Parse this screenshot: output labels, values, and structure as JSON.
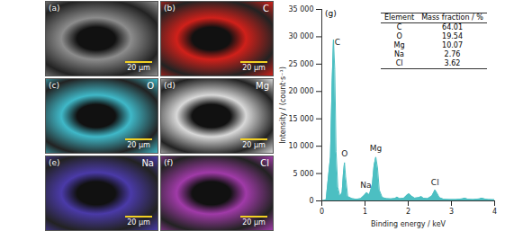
{
  "panels": [
    {
      "label": "(a)",
      "color": "#8c8c8c",
      "scale_bar": "20 μm"
    },
    {
      "label": "(b)",
      "element": "C",
      "color": "#d0201a",
      "scale_bar": "20 μm"
    },
    {
      "label": "(c)",
      "element": "O",
      "color": "#3fb8c8",
      "scale_bar": "20 μm"
    },
    {
      "label": "(d)",
      "element": "Mg",
      "color": "#d8d8d8",
      "scale_bar": "20 μm"
    },
    {
      "label": "(e)",
      "element": "Na",
      "color": "#4a3aa8",
      "scale_bar": "20 μm"
    },
    {
      "label": "(f)",
      "element": "Cl",
      "color": "#a03aa8",
      "scale_bar": "20 μm"
    }
  ],
  "chart_data": {
    "type": "area",
    "title": "(g)",
    "x_label": "Binding energy / keV",
    "y_label": "Intensity / (count·s⁻¹)",
    "color": "#4cbfc2",
    "x": [
      0,
      0.1,
      0.2,
      0.24,
      0.27,
      0.3,
      0.33,
      0.37,
      0.42,
      0.47,
      0.5,
      0.525,
      0.55,
      0.6,
      0.7,
      0.8,
      0.9,
      0.98,
      1.04,
      1.1,
      1.17,
      1.21,
      1.25,
      1.29,
      1.33,
      1.4,
      1.5,
      1.6,
      1.7,
      1.74,
      1.8,
      1.9,
      1.98,
      2.02,
      2.07,
      2.15,
      2.25,
      2.3,
      2.35,
      2.45,
      2.55,
      2.6,
      2.62,
      2.66,
      2.72,
      2.82,
      2.95,
      3.1,
      3.25,
      3.31,
      3.38,
      3.5,
      3.65,
      3.7,
      3.76,
      3.85,
      4.0
    ],
    "values": [
      0,
      200,
      8000,
      22000,
      29500,
      24000,
      9000,
      2500,
      800,
      1500,
      5000,
      7000,
      4500,
      800,
      400,
      300,
      400,
      1000,
      1500,
      1100,
      3000,
      6500,
      8000,
      6000,
      2000,
      600,
      400,
      350,
      450,
      700,
      400,
      500,
      1100,
      1300,
      900,
      500,
      600,
      800,
      500,
      400,
      900,
      1700,
      2000,
      1500,
      600,
      300,
      250,
      250,
      350,
      500,
      300,
      250,
      350,
      500,
      350,
      250,
      200
    ],
    "xlim": [
      0,
      4
    ],
    "xticks": [
      0,
      1,
      2,
      3,
      4
    ],
    "ylim": [
      0,
      35000
    ],
    "yticks": [
      0,
      {
        "value": 5000,
        "label": "5 000"
      },
      {
        "value": 10000,
        "label": "10 000"
      },
      {
        "value": 15000,
        "label": "15 000"
      },
      {
        "value": 20000,
        "label": "20 000"
      },
      {
        "value": 25000,
        "label": "25 000"
      },
      {
        "value": 30000,
        "label": "30 000"
      },
      {
        "value": 35000,
        "label": "35 000"
      }
    ],
    "grid": false,
    "annotations": [
      {
        "text": "C",
        "x": 0.36,
        "y": 29000
      },
      {
        "text": "O",
        "x": 0.525,
        "y": 8600
      },
      {
        "text": "Na",
        "x": 1.02,
        "y": 2800
      },
      {
        "text": "Mg",
        "x": 1.25,
        "y": 9600
      },
      {
        "text": "Cl",
        "x": 2.62,
        "y": 3400
      }
    ],
    "table": {
      "header": [
        "Element",
        "Mass fraction / %"
      ],
      "rows": [
        [
          "C",
          64.01
        ],
        [
          "O",
          19.54
        ],
        [
          "Mg",
          10.07
        ],
        [
          "Na",
          2.76
        ],
        [
          "Cl",
          3.62
        ]
      ]
    }
  }
}
